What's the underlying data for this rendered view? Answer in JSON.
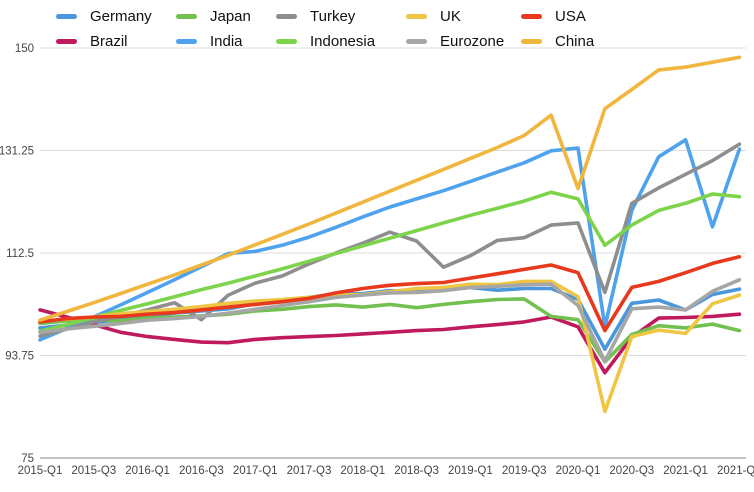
{
  "chart_data": {
    "type": "line",
    "title": "",
    "xlabel": "",
    "ylabel": "",
    "grid": "horizontal-only",
    "legend_position": "top",
    "legend_rows": 2,
    "legend_order": [
      "Germany",
      "Brazil",
      "Japan",
      "India",
      "Turkey",
      "Indonesia",
      "UK",
      "Eurozone",
      "USA",
      "China"
    ],
    "ylim": [
      75,
      150
    ],
    "yticks": [
      {
        "value": 150,
        "label": "150"
      },
      {
        "value": 131.25,
        "label": "131.25"
      },
      {
        "value": 112.5,
        "label": "112.5"
      },
      {
        "value": 93.75,
        "label": "93.75"
      },
      {
        "value": 75,
        "label": "75"
      }
    ],
    "x": [
      "2015-Q1",
      "2015-Q2",
      "2015-Q3",
      "2015-Q4",
      "2016-Q1",
      "2016-Q2",
      "2016-Q3",
      "2016-Q4",
      "2017-Q1",
      "2017-Q2",
      "2017-Q3",
      "2017-Q4",
      "2018-Q1",
      "2018-Q2",
      "2018-Q3",
      "2018-Q4",
      "2019-Q1",
      "2019-Q2",
      "2019-Q3",
      "2019-Q4",
      "2020-Q1",
      "2020-Q2",
      "2020-Q3",
      "2020-Q4",
      "2021-Q1",
      "2021-Q2",
      "2021-Q3"
    ],
    "x_tick_every": 2,
    "x_tick_labels": [
      "2015-Q1",
      "2015-Q3",
      "2016-Q1",
      "2016-Q3",
      "2017-Q1",
      "2017-Q3",
      "2018-Q1",
      "2018-Q3",
      "2019-Q1",
      "2019-Q3",
      "2020-Q1",
      "2020-Q3",
      "2021-Q1",
      "2021-Q3"
    ],
    "series": [
      {
        "name": "Germany",
        "color": "#4A97DC",
        "values": [
          98.8,
          99.3,
          99.8,
          100.3,
          101.0,
          101.5,
          101.9,
          102.3,
          103.2,
          103.6,
          104.4,
          105.0,
          105.1,
          105.6,
          105.4,
          105.7,
          106.2,
          105.7,
          106.0,
          106.0,
          104.0,
          94.9,
          103.3,
          103.9,
          102.1,
          104.9,
          105.9
        ]
      },
      {
        "name": "Brazil",
        "color": "#C01A5F",
        "values": [
          102.1,
          100.8,
          99.4,
          98.0,
          97.2,
          96.7,
          96.2,
          96.1,
          96.7,
          97.0,
          97.2,
          97.4,
          97.7,
          98.0,
          98.3,
          98.5,
          99.0,
          99.4,
          99.9,
          100.8,
          99.0,
          90.6,
          97.1,
          100.6,
          100.7,
          100.9,
          101.3
        ]
      },
      {
        "name": "Japan",
        "color": "#72C04F",
        "values": [
          99.6,
          100.1,
          100.3,
          100.1,
          100.6,
          100.8,
          101.0,
          101.3,
          101.9,
          102.2,
          102.7,
          103.0,
          102.6,
          103.1,
          102.5,
          103.1,
          103.6,
          104.0,
          104.1,
          100.9,
          100.3,
          92.6,
          97.6,
          99.2,
          98.8,
          99.5,
          98.3
        ]
      },
      {
        "name": "India",
        "color": "#4FA3EE",
        "values": [
          96.6,
          98.7,
          100.8,
          103.0,
          105.3,
          107.6,
          110.0,
          112.4,
          112.8,
          113.9,
          115.4,
          117.2,
          119.1,
          120.9,
          122.4,
          123.9,
          125.6,
          127.3,
          129.0,
          131.2,
          131.7,
          99.0,
          120.3,
          130.1,
          133.2,
          117.3,
          131.5
        ]
      },
      {
        "name": "Turkey",
        "color": "#8E8E8E",
        "values": [
          97.3,
          98.6,
          99.9,
          100.9,
          102.1,
          103.4,
          100.3,
          104.8,
          107.0,
          108.3,
          110.5,
          112.5,
          114.3,
          116.3,
          114.7,
          109.9,
          112.0,
          114.8,
          115.3,
          117.6,
          118.0,
          105.3,
          121.6,
          124.4,
          126.9,
          129.4,
          132.4
        ]
      },
      {
        "name": "Indonesia",
        "color": "#7DD44B",
        "values": [
          98.2,
          99.4,
          100.7,
          102.0,
          103.2,
          104.5,
          105.8,
          107.0,
          108.3,
          109.6,
          111.0,
          112.4,
          113.8,
          115.2,
          116.6,
          118.0,
          119.4,
          120.7,
          122.0,
          123.6,
          122.4,
          113.9,
          117.6,
          120.3,
          121.6,
          123.3,
          122.8
        ]
      },
      {
        "name": "UK",
        "color": "#EEC643",
        "values": [
          100.0,
          100.4,
          100.8,
          101.4,
          101.8,
          102.2,
          102.7,
          103.3,
          103.7,
          104.0,
          104.4,
          104.8,
          104.9,
          105.4,
          106.0,
          106.2,
          106.8,
          106.7,
          107.3,
          107.3,
          104.5,
          83.5,
          97.2,
          98.4,
          97.8,
          103.2,
          104.8
        ]
      },
      {
        "name": "Eurozone",
        "color": "#A6A6A6",
        "values": [
          98.0,
          98.6,
          99.1,
          99.6,
          100.2,
          100.5,
          100.9,
          101.5,
          102.2,
          102.9,
          103.6,
          104.4,
          104.8,
          105.2,
          105.3,
          105.6,
          106.2,
          106.4,
          106.7,
          106.8,
          102.9,
          92.7,
          102.3,
          102.6,
          102.1,
          105.5,
          107.6
        ]
      },
      {
        "name": "USA",
        "color": "#E8391D",
        "values": [
          99.9,
          100.5,
          100.8,
          100.9,
          101.3,
          101.6,
          102.1,
          102.6,
          103.1,
          103.6,
          104.2,
          105.2,
          106.0,
          106.6,
          106.9,
          107.1,
          107.9,
          108.7,
          109.5,
          110.3,
          108.9,
          98.3,
          106.2,
          107.3,
          108.9,
          110.6,
          111.8
        ]
      },
      {
        "name": "China",
        "color": "#F1B63E",
        "values": [
          100.2,
          101.8,
          103.4,
          105.1,
          106.8,
          108.5,
          110.3,
          112.1,
          114.0,
          115.9,
          117.8,
          119.8,
          121.8,
          123.8,
          125.8,
          127.8,
          129.8,
          131.8,
          134.0,
          137.7,
          124.3,
          138.9,
          142.4,
          146.0,
          146.5,
          147.4,
          148.3
        ]
      }
    ],
    "gridline_color": "#dcdcdc",
    "baseline_color": "#b0b0b0",
    "text_color": "#454545"
  }
}
